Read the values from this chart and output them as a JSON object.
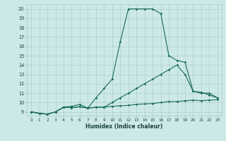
{
  "xlabel": "Humidex (Indice chaleur)",
  "bg_color": "#cce9e8",
  "line_color": "#1a6b5a",
  "grid_color": "#a8c8c8",
  "xlim_min": -0.5,
  "xlim_max": 23.5,
  "ylim_min": 8.6,
  "ylim_max": 20.5,
  "xticks": [
    0,
    1,
    2,
    3,
    4,
    5,
    6,
    7,
    8,
    9,
    10,
    11,
    12,
    13,
    14,
    15,
    16,
    17,
    18,
    19,
    20,
    21,
    22,
    23
  ],
  "yticks": [
    9,
    10,
    11,
    12,
    13,
    14,
    15,
    16,
    17,
    18,
    19,
    20
  ],
  "series1_x": [
    0,
    1,
    2,
    3,
    4,
    5,
    6,
    7,
    8,
    9,
    10,
    11,
    12,
    13,
    14,
    15,
    16,
    17,
    18,
    19,
    20,
    21,
    22,
    23
  ],
  "series1_y": [
    9.0,
    8.85,
    8.75,
    9.0,
    9.5,
    9.45,
    9.55,
    9.4,
    9.5,
    9.5,
    9.6,
    9.65,
    9.7,
    9.8,
    9.85,
    9.9,
    10.0,
    10.1,
    10.1,
    10.2,
    10.25,
    10.2,
    10.25,
    10.3
  ],
  "series2_x": [
    0,
    1,
    2,
    3,
    4,
    5,
    6,
    7,
    8,
    9,
    10,
    11,
    12,
    13,
    14,
    15,
    16,
    17,
    18,
    19,
    20,
    21,
    22,
    23
  ],
  "series2_y": [
    9.0,
    8.85,
    8.75,
    9.0,
    9.5,
    9.45,
    9.55,
    9.4,
    9.5,
    9.5,
    10.0,
    10.5,
    11.0,
    11.5,
    12.0,
    12.5,
    13.0,
    13.5,
    14.0,
    13.0,
    11.2,
    11.1,
    10.8,
    10.5
  ],
  "series3_x": [
    0,
    1,
    2,
    3,
    4,
    5,
    6,
    7,
    8,
    9,
    10,
    11,
    12,
    13,
    14,
    15,
    16,
    17,
    18,
    19,
    20,
    21,
    22,
    23
  ],
  "series3_y": [
    9.0,
    8.85,
    8.75,
    9.0,
    9.5,
    9.6,
    9.8,
    9.4,
    10.5,
    11.5,
    12.5,
    16.5,
    20.0,
    20.0,
    20.0,
    20.0,
    19.5,
    15.0,
    14.5,
    14.3,
    11.2,
    11.0,
    11.0,
    10.5
  ]
}
